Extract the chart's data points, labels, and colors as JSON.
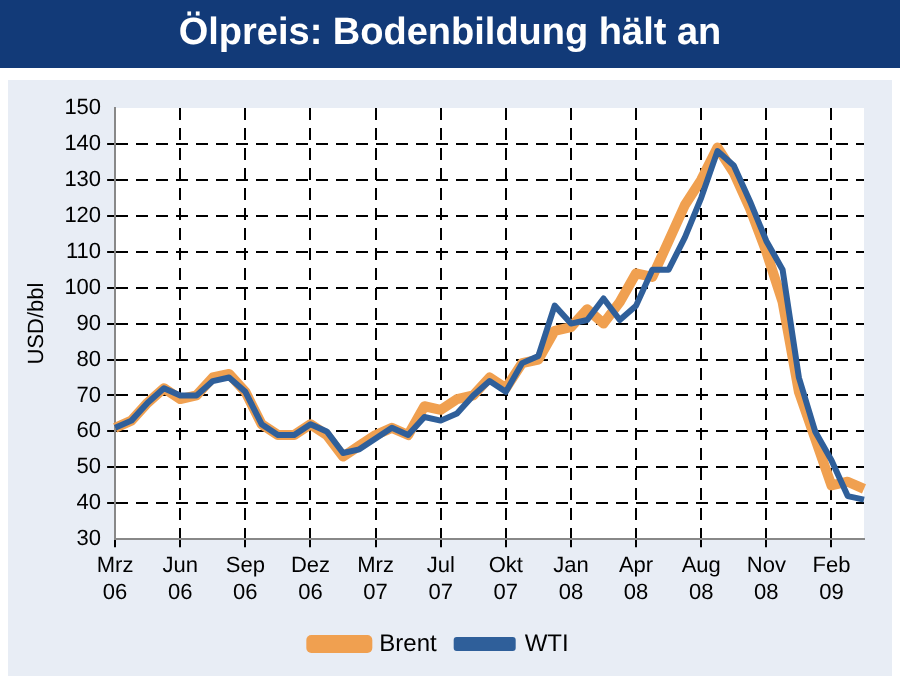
{
  "chart_data": {
    "type": "line",
    "title": "Ölpreis: Bodenbildung hält an",
    "ylabel": "USD/bbl",
    "categories": [
      "Mrz\n06",
      null,
      null,
      null,
      "Jun\n06",
      null,
      null,
      null,
      "Sep\n06",
      null,
      null,
      null,
      "Dez\n06",
      null,
      null,
      null,
      "Mrz\n07",
      null,
      null,
      null,
      "Jul\n07",
      null,
      null,
      null,
      "Okt\n07",
      null,
      null,
      null,
      "Jan\n08",
      null,
      null,
      null,
      "Apr\n08",
      null,
      null,
      null,
      "Aug\n08",
      null,
      null,
      null,
      "Nov\n08",
      null,
      null,
      null,
      "Feb\n09",
      null,
      null
    ],
    "series": [
      {
        "name": "Brent",
        "color": "#f0a050",
        "values": [
          61,
          63,
          68,
          72,
          69,
          70,
          75,
          76,
          71,
          62,
          59,
          59,
          62,
          59,
          53,
          56,
          59,
          61,
          59,
          67,
          66,
          69,
          70,
          75,
          72,
          79,
          80,
          88,
          89,
          94,
          90,
          96,
          104,
          103,
          113,
          123,
          130,
          139,
          132,
          122,
          110,
          96,
          71,
          58,
          45,
          46,
          44
        ]
      },
      {
        "name": "WTI",
        "color": "#2f5f9a",
        "values": [
          61,
          63,
          68,
          72,
          70,
          70,
          74,
          75,
          71,
          62,
          59,
          59,
          62,
          60,
          54,
          55,
          58,
          61,
          59,
          64,
          63,
          65,
          70,
          74,
          71,
          79,
          81,
          95,
          90,
          91,
          97,
          91,
          95,
          105,
          105,
          114,
          125,
          138,
          134,
          124,
          113,
          105,
          75,
          60,
          52,
          42,
          41
        ]
      }
    ],
    "ylim": [
      30,
      150
    ],
    "yticks": [
      30,
      40,
      50,
      60,
      70,
      80,
      90,
      100,
      110,
      120,
      130,
      140,
      150
    ],
    "grid": true,
    "legend": "bottom",
    "marker": "none"
  }
}
